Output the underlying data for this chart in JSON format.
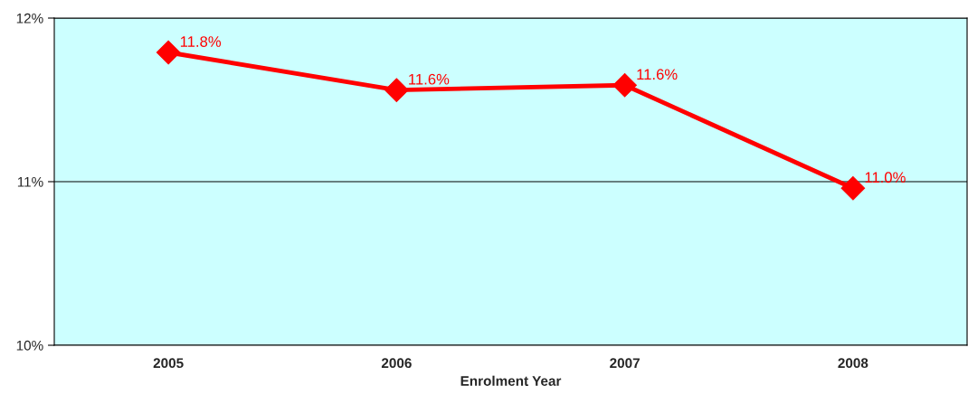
{
  "chart_data": {
    "type": "line",
    "xlabel": "Enrolment Year",
    "categories": [
      "2005",
      "2006",
      "2007",
      "2008"
    ],
    "series": [
      {
        "color": "#ff0000",
        "values": [
          11.79,
          11.56,
          11.59,
          10.96
        ],
        "value_labels": [
          "11.8%",
          "11.6%",
          "11.6%",
          "11.0%"
        ]
      }
    ],
    "ylim": [
      10,
      12
    ],
    "yticks": [
      {
        "value": 10,
        "label": "10%"
      },
      {
        "value": 11,
        "label": "11%"
      },
      {
        "value": 12,
        "label": "12%"
      }
    ],
    "grid": "y",
    "marker": "diamond",
    "line_style": "solid",
    "legend": false
  }
}
